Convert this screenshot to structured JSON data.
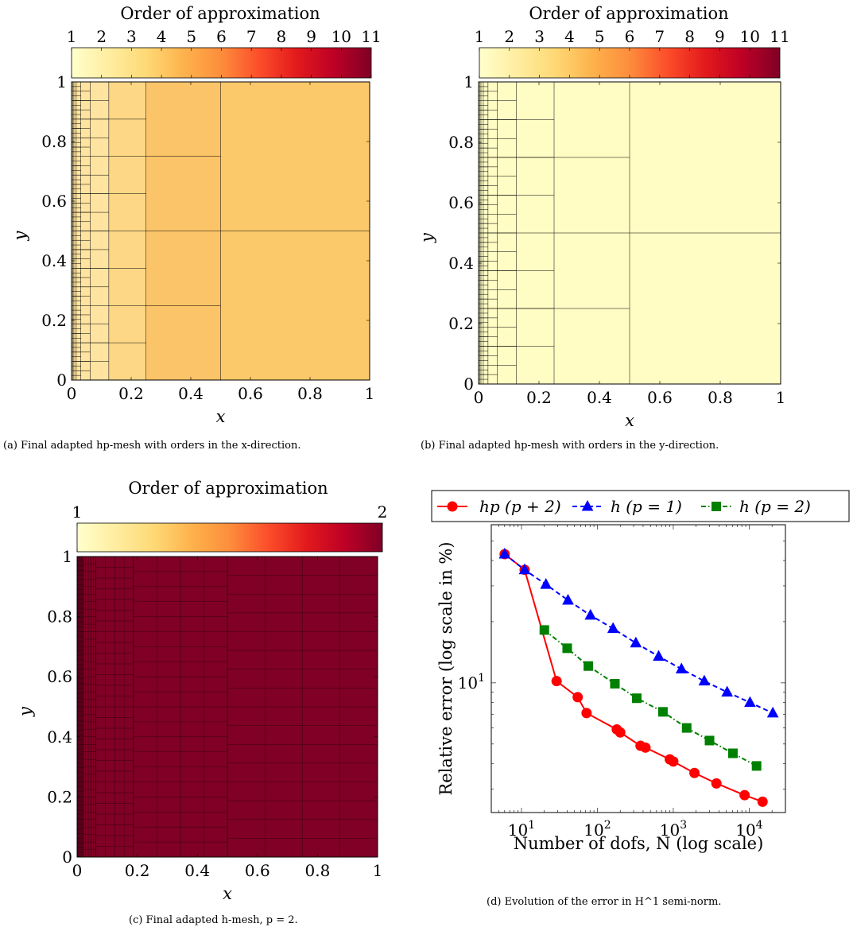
{
  "chart_data": [
    {
      "id": "a",
      "type": "heatmap",
      "title": "Order of approximation",
      "colorbar_ticks": [
        "1",
        "2",
        "3",
        "4",
        "5",
        "6",
        "7",
        "8",
        "9",
        "10",
        "11"
      ],
      "colorbar_range": [
        1,
        11
      ],
      "xlabel": "x",
      "ylabel": "y",
      "xlim": [
        0,
        1
      ],
      "ylim": [
        0,
        1
      ],
      "x_ticks": [
        "0",
        "0.2",
        "0.4",
        "0.6",
        "0.8",
        "1"
      ],
      "y_ticks": [
        "0",
        "0.2",
        "0.4",
        "0.6",
        "0.8",
        "1"
      ],
      "caption": "(a) Final adapted hp-mesh with orders in the x-direction.",
      "cell_colors": {
        "x_gt_0.5": "#fcc96a",
        "x_0.25_0.5": "#fcc468",
        "x_0.125_0.25": "#fdd786",
        "x_lt_0.125": "#fee4a0"
      }
    },
    {
      "id": "b",
      "type": "heatmap",
      "title": "Order of approximation",
      "colorbar_ticks": [
        "1",
        "2",
        "3",
        "4",
        "5",
        "6",
        "7",
        "8",
        "9",
        "10",
        "11"
      ],
      "colorbar_range": [
        1,
        11
      ],
      "xlabel": "x",
      "ylabel": "y",
      "xlim": [
        0,
        1
      ],
      "ylim": [
        0,
        1
      ],
      "x_ticks": [
        "0",
        "0.2",
        "0.4",
        "0.6",
        "0.8",
        "1"
      ],
      "y_ticks": [
        "0",
        "0.2",
        "0.4",
        "0.6",
        "0.8",
        "1"
      ],
      "caption": "(b) Final adapted hp-mesh with orders in the y-direction.",
      "cell_colors": {
        "all": "#fffcc4"
      }
    },
    {
      "id": "c",
      "type": "heatmap",
      "title": "Order of approximation",
      "colorbar_ticks": [
        "1",
        "2"
      ],
      "colorbar_range": [
        1,
        2
      ],
      "xlabel": "x",
      "ylabel": "y",
      "xlim": [
        0,
        1
      ],
      "ylim": [
        0,
        1
      ],
      "x_ticks": [
        "0",
        "0.2",
        "0.4",
        "0.6",
        "0.8",
        "1"
      ],
      "y_ticks": [
        "0",
        "0.2",
        "0.4",
        "0.6",
        "0.8",
        "1"
      ],
      "caption": "(c) Final adapted h-mesh, p = 2.",
      "cell_colors": {
        "all": "#800026"
      }
    },
    {
      "id": "d",
      "type": "line",
      "xlabel": "Number of dofs, N (log scale)",
      "ylabel": "Relative error (log scale in %)",
      "x_scale": "log",
      "y_scale": "log",
      "x_ticks": [
        "10^1",
        "10^2",
        "10^3",
        "10^4"
      ],
      "y_ticks": [
        "10^1"
      ],
      "xlim": [
        4,
        30000
      ],
      "ylim": [
        2.3,
        60
      ],
      "legend_position": "top",
      "caption": "(d) Evolution of the error in H^1 semi-norm.",
      "series": [
        {
          "name": "hp (p + 2)",
          "color": "#ff0000",
          "marker": "circle",
          "line": "solid",
          "x": [
            6,
            11,
            29,
            55,
            72,
            180,
            200,
            370,
            430,
            900,
            1000,
            1900,
            3700,
            8700,
            15000
          ],
          "y": [
            43,
            36,
            10.2,
            8.5,
            7.1,
            5.9,
            5.7,
            4.9,
            4.8,
            4.2,
            4.1,
            3.6,
            3.2,
            2.8,
            2.6
          ]
        },
        {
          "name": "h (p = 1)",
          "color": "#0000ff",
          "marker": "triangle",
          "line": "dashed",
          "x": [
            6,
            11,
            21,
            41,
            81,
            161,
            321,
            641,
            1281,
            2561,
            5121,
            10241,
            20481
          ],
          "y": [
            43,
            36,
            30.5,
            25.5,
            21.5,
            18.5,
            15.7,
            13.5,
            11.7,
            10.2,
            9.0,
            8.0,
            7.1
          ]
        },
        {
          "name": "h (p = 2)",
          "color": "#008000",
          "marker": "square",
          "line": "dashdotted",
          "x": [
            20,
            40,
            76,
            170,
            330,
            730,
            1500,
            3000,
            6100,
            12500
          ],
          "y": [
            18.2,
            14.8,
            12.1,
            9.9,
            8.4,
            7.2,
            6.0,
            5.2,
            4.5,
            3.9
          ]
        }
      ]
    }
  ]
}
